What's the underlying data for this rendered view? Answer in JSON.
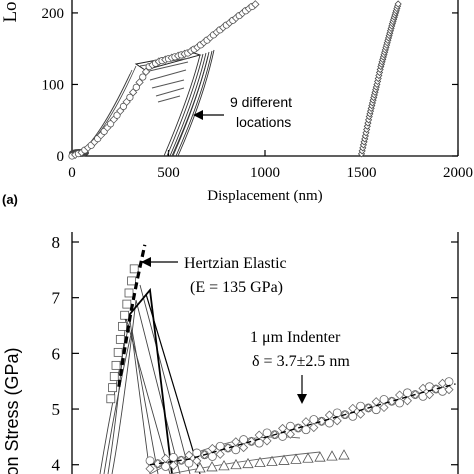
{
  "chart_data": [
    {
      "type": "scatter",
      "panel_label": "(a)",
      "xlabel": "Displacement (nm)",
      "ylabel_visible": "Lo",
      "xlim": [
        0,
        2000
      ],
      "ylim": [
        0,
        260
      ],
      "x_ticks": [
        0,
        500,
        1000,
        1500,
        2000
      ],
      "x_tick_labels": [
        "0",
        "500",
        "1000",
        "1500",
        "2000"
      ],
      "y_ticks": [
        0,
        100,
        200
      ],
      "y_tick_labels": [
        "0",
        "100",
        "200"
      ],
      "annotation": [
        "9 different",
        "locations"
      ],
      "grid": false,
      "series": [
        {
          "values": [
            [
              0,
              0
            ],
            [
              50,
              5
            ],
            [
              100,
              15
            ],
            [
              150,
              29
            ],
            [
              200,
              45
            ],
            [
              250,
              63
            ],
            [
              300,
              82
            ],
            [
              350,
              103
            ],
            [
              400,
              125
            ],
            [
              450,
              132
            ],
            [
              500,
              136
            ],
            [
              550,
              140
            ],
            [
              600,
              144
            ],
            [
              650,
              152
            ],
            [
              700,
              162
            ],
            [
              750,
              173
            ],
            [
              800,
              183
            ],
            [
              850,
              193
            ],
            [
              900,
              203
            ],
            [
              950,
              212
            ],
            [
              1000,
              222
            ],
            [
              1050,
              231
            ],
            [
              1100,
              240
            ],
            [
              1150,
              248
            ]
          ]
        },
        {
          "values": [
            [
              1500,
              3
            ],
            [
              1520,
              28
            ],
            [
              1540,
              55
            ],
            [
              1560,
              78
            ],
            [
              1580,
              100
            ],
            [
              1600,
              125
            ],
            [
              1620,
              145
            ],
            [
              1640,
              165
            ],
            [
              1660,
              185
            ],
            [
              1680,
              203
            ],
            [
              1700,
              222
            ],
            [
              1720,
              238
            ]
          ]
        }
      ]
    },
    {
      "type": "scatter",
      "ylabel_visible": "on Stress (GPa)",
      "ylim": [
        3.6,
        8
      ],
      "y_ticks": [
        4,
        5,
        6,
        7,
        8
      ],
      "y_tick_labels": [
        "4",
        "5",
        "6",
        "7",
        "8"
      ],
      "annotations": {
        "hertzian_title": "Hertzian Elastic",
        "hertzian_modulus": "(E = 135 GPa)",
        "indenter_title": "1 μm Indenter",
        "indenter_delta": "δ = 3.7±2.5 nm"
      },
      "grid": false,
      "series": [
        {
          "values": [
            [
              0.36,
              5.4
            ],
            [
              0.4,
              6.0
            ],
            [
              0.45,
              6.7
            ],
            [
              0.5,
              7.3
            ],
            [
              0.56,
              7.95
            ]
          ]
        },
        {
          "values": [
            [
              0.6,
              4.0
            ],
            [
              0.9,
              4.1
            ],
            [
              1.2,
              4.3
            ],
            [
              1.5,
              4.5
            ],
            [
              1.8,
              4.7
            ],
            [
              2.1,
              4.9
            ],
            [
              2.4,
              5.1
            ],
            [
              2.7,
              5.3
            ],
            [
              2.95,
              5.45
            ]
          ]
        }
      ]
    }
  ]
}
